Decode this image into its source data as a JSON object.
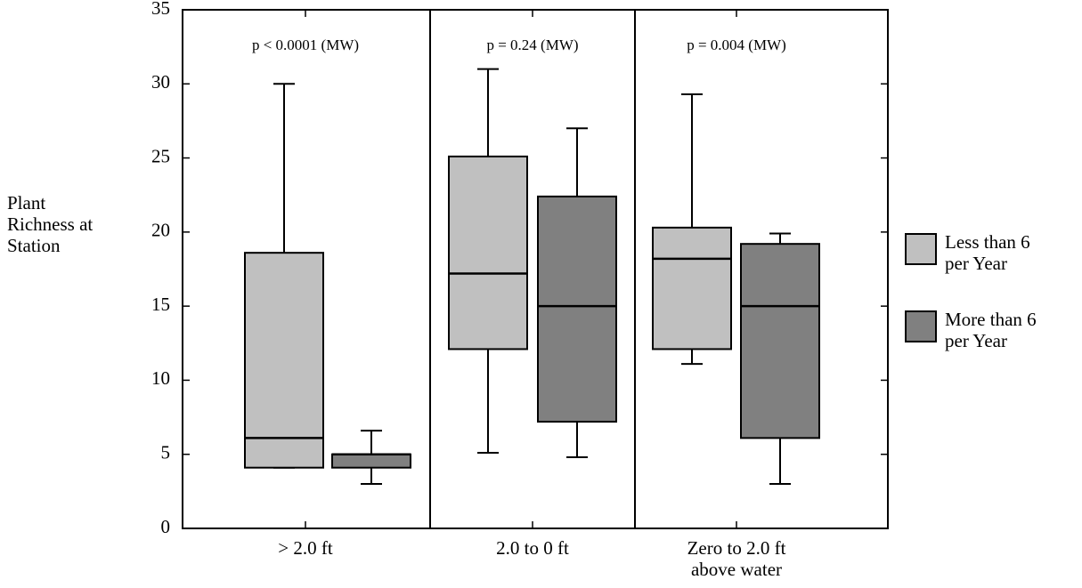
{
  "chart_data": {
    "type": "box",
    "y_label": "Plant Richness at Station",
    "categories": [
      "> 2.0 ft",
      "2.0 to 0 ft",
      "Zero to 2.0 ft above water"
    ],
    "annotations": [
      "p < 0.0001 (MW)",
      "p = 0.24 (MW)",
      "p = 0.004 (MW)"
    ],
    "ylim": [
      0,
      35
    ],
    "yticks": [
      0,
      5,
      10,
      15,
      20,
      25,
      30,
      35
    ],
    "series": [
      {
        "name": "Less than 6 per Year",
        "color": "#c0c0c0",
        "values": [
          {
            "min": 4.1,
            "q1": 4.1,
            "median": 6.1,
            "q3": 18.6,
            "max": 30
          },
          {
            "min": 5.1,
            "q1": 12.1,
            "median": 17.2,
            "q3": 25.1,
            "max": 31
          },
          {
            "min": 11.1,
            "q1": 12.1,
            "median": 18.2,
            "q3": 20.3,
            "max": 29.3
          }
        ]
      },
      {
        "name": "More than 6 per Year",
        "color": "#808080",
        "values": [
          {
            "min": 3.0,
            "q1": 4.1,
            "median": 5.0,
            "q3": 5.0,
            "max": 6.6
          },
          {
            "min": 4.8,
            "q1": 7.2,
            "median": 15.0,
            "q3": 22.4,
            "max": 27
          },
          {
            "min": 3.0,
            "q1": 6.1,
            "median": 15.0,
            "q3": 19.2,
            "max": 19.9
          }
        ]
      }
    ]
  }
}
